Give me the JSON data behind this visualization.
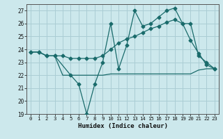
{
  "xlabel": "Humidex (Indice chaleur)",
  "bg_color": "#cce8ec",
  "grid_color": "#aacdd4",
  "line_color": "#1a6b6b",
  "xlim": [
    -0.5,
    23.5
  ],
  "ylim": [
    19,
    27.5
  ],
  "xticks": [
    0,
    1,
    2,
    3,
    4,
    5,
    6,
    7,
    8,
    9,
    10,
    11,
    12,
    13,
    14,
    15,
    16,
    17,
    18,
    19,
    20,
    21,
    22,
    23
  ],
  "yticks": [
    19,
    20,
    21,
    22,
    23,
    24,
    25,
    26,
    27
  ],
  "line1_x": [
    0,
    1,
    2,
    3,
    5,
    6,
    7,
    8,
    9,
    10,
    11,
    12,
    13,
    14,
    15,
    16,
    17,
    18,
    19,
    20,
    21,
    22,
    23
  ],
  "line1_y": [
    23.8,
    23.8,
    23.5,
    23.5,
    22.0,
    21.3,
    19.0,
    21.3,
    23.0,
    26.0,
    22.5,
    24.3,
    27.0,
    25.8,
    26.0,
    26.5,
    27.0,
    27.2,
    26.0,
    24.7,
    23.7,
    22.8,
    22.5
  ],
  "line2_x": [
    0,
    1,
    2,
    3,
    4,
    5,
    6,
    7,
    8,
    9,
    10,
    11,
    12,
    13,
    14,
    15,
    16,
    17,
    18,
    19,
    20,
    21,
    22,
    23
  ],
  "line2_y": [
    23.8,
    23.8,
    23.5,
    23.5,
    23.5,
    23.3,
    23.3,
    23.3,
    23.3,
    23.5,
    24.0,
    24.5,
    24.8,
    25.0,
    25.3,
    25.6,
    25.8,
    26.1,
    26.3,
    26.0,
    26.0,
    23.5,
    23.0,
    22.5
  ],
  "line3_x": [
    0,
    1,
    2,
    3,
    4,
    5,
    6,
    7,
    8,
    9,
    10,
    11,
    12,
    13,
    14,
    15,
    16,
    17,
    18,
    19,
    20,
    21,
    22,
    23
  ],
  "line3_y": [
    23.8,
    23.8,
    23.5,
    23.5,
    22.0,
    22.0,
    22.0,
    22.0,
    22.0,
    22.0,
    22.1,
    22.1,
    22.1,
    22.1,
    22.1,
    22.1,
    22.1,
    22.1,
    22.1,
    22.1,
    22.1,
    22.4,
    22.5,
    22.5
  ]
}
